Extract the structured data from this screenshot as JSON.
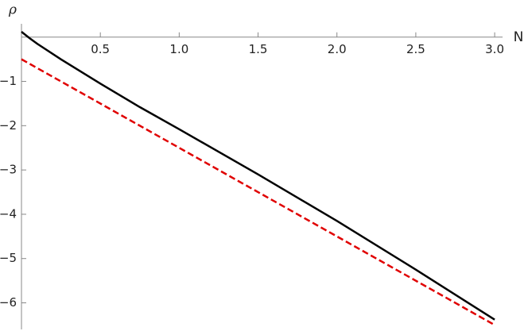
{
  "chart_data": {
    "type": "line",
    "x_label": "N",
    "y_label": "ρ",
    "xlim": [
      0,
      3.05
    ],
    "ylim": [
      -6.6,
      0.3
    ],
    "xticks": [
      0.5,
      {
        "value": 1,
        "label": "1.0"
      },
      1.5,
      {
        "value": 2,
        "label": "2.0"
      },
      2.5,
      {
        "value": 3,
        "label": "3.0"
      }
    ],
    "yticks": [
      {
        "value": -1,
        "label": "−1"
      },
      {
        "value": -2,
        "label": "−2"
      },
      {
        "value": -3,
        "label": "−3"
      },
      {
        "value": -4,
        "label": "−4"
      },
      {
        "value": -5,
        "label": "−5"
      },
      {
        "value": -6,
        "label": "−6"
      }
    ],
    "series": [
      {
        "color": "#000000",
        "dash": false,
        "x": [
          0,
          0.05,
          0.1,
          0.25,
          0.5,
          0.75,
          1,
          1.5,
          2,
          2.5,
          3
        ],
        "values": [
          0.12,
          -0.02,
          -0.15,
          -0.5,
          -1.05,
          -1.58,
          -2.08,
          -3.1,
          -4.15,
          -5.25,
          -6.38
        ]
      },
      {
        "color": "#e00000",
        "dash": true,
        "x": [
          0,
          3
        ],
        "values": [
          -0.5,
          -6.5
        ]
      }
    ]
  }
}
